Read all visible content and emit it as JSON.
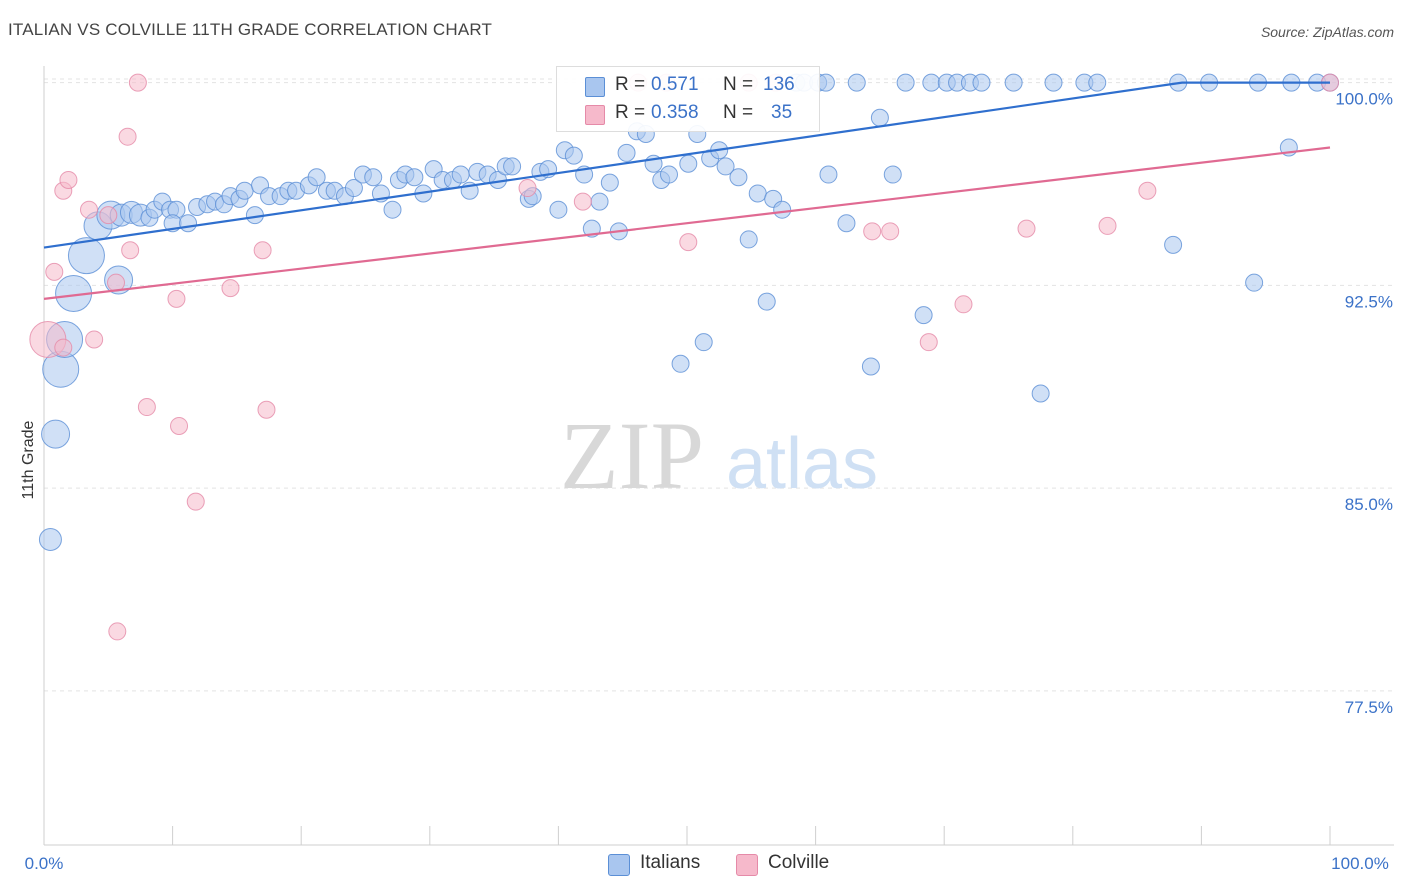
{
  "header": {
    "title": "ITALIAN VS COLVILLE 11TH GRADE CORRELATION CHART",
    "source": "Source: ZipAtlas.com"
  },
  "watermark": {
    "zip": "ZIP",
    "atlas": "atlas"
  },
  "stats_box": {
    "r_label": "R =",
    "n_label": "N =",
    "rows": [
      {
        "r": "0.571",
        "n": "136",
        "color": "#a9c6ef"
      },
      {
        "r": "0.358",
        "n": "35",
        "color": "#f6b9cb"
      }
    ]
  },
  "legend": [
    {
      "label": "Italians",
      "color": "#a9c6ef"
    },
    {
      "label": "Colville",
      "color": "#f6b9cb"
    }
  ],
  "chart_data": {
    "type": "scatter",
    "title": "ITALIAN VS COLVILLE 11TH GRADE CORRELATION CHART",
    "xlabel": "",
    "ylabel": "11th Grade",
    "xlim": [
      0,
      100
    ],
    "ylim": [
      71.8,
      100.8
    ],
    "x_tick_labels": [
      "0.0%",
      "100.0%"
    ],
    "y_ticks": [
      77.5,
      85.0,
      92.5,
      100.0
    ],
    "y_tick_labels": [
      "77.5%",
      "85.0%",
      "92.5%",
      "100.0%"
    ],
    "grid": "horizontal dashed",
    "legend_position": "bottom-center",
    "colors": {
      "italians_fill": "#a9c6ef",
      "italians_stroke": "#5b8fd6",
      "italians_line": "#2f6fce",
      "colville_fill": "#f6b9cb",
      "colville_stroke": "#e58aa8",
      "colville_line": "#e06a92",
      "tick_label": "#3b72c8"
    },
    "series": [
      {
        "name": "Italians",
        "trend": {
          "x": [
            0,
            88.5,
            100
          ],
          "y": [
            93.9,
            100.0,
            100.0
          ]
        },
        "points": [
          [
            0.5,
            83.1,
            2
          ],
          [
            0.9,
            87.0,
            3
          ],
          [
            1.3,
            89.4,
            4
          ],
          [
            1.6,
            90.5,
            4
          ],
          [
            2.3,
            92.2,
            4
          ],
          [
            3.3,
            93.6,
            4
          ],
          [
            4.2,
            94.7,
            3
          ],
          [
            5.8,
            92.7,
            3
          ],
          [
            5.2,
            95.1,
            3
          ],
          [
            6.0,
            95.1,
            2
          ],
          [
            6.8,
            95.2,
            2
          ],
          [
            7.5,
            95.1,
            2
          ],
          [
            8.2,
            95.0,
            1
          ],
          [
            8.6,
            95.3,
            1
          ],
          [
            9.2,
            95.6,
            1
          ],
          [
            9.8,
            95.3,
            1
          ],
          [
            10.3,
            95.3,
            1
          ],
          [
            10.0,
            94.8,
            1
          ],
          [
            11.2,
            94.8,
            1
          ],
          [
            11.9,
            95.4,
            1
          ],
          [
            12.7,
            95.5,
            1
          ],
          [
            13.3,
            95.6,
            1
          ],
          [
            14.0,
            95.5,
            1
          ],
          [
            14.5,
            95.8,
            1
          ],
          [
            15.2,
            95.7,
            1
          ],
          [
            15.6,
            96.0,
            1
          ],
          [
            16.4,
            95.1,
            1
          ],
          [
            16.8,
            96.2,
            1
          ],
          [
            17.5,
            95.8,
            1
          ],
          [
            18.4,
            95.8,
            1
          ],
          [
            19.0,
            96.0,
            1
          ],
          [
            19.6,
            96.0,
            1
          ],
          [
            20.6,
            96.2,
            1
          ],
          [
            21.2,
            96.5,
            1
          ],
          [
            22.0,
            96.0,
            1
          ],
          [
            22.6,
            96.0,
            1
          ],
          [
            23.4,
            95.8,
            1
          ],
          [
            24.1,
            96.1,
            1
          ],
          [
            24.8,
            96.6,
            1
          ],
          [
            25.6,
            96.5,
            1
          ],
          [
            26.2,
            95.9,
            1
          ],
          [
            27.1,
            95.3,
            1
          ],
          [
            27.6,
            96.4,
            1
          ],
          [
            28.1,
            96.6,
            1
          ],
          [
            28.8,
            96.5,
            1
          ],
          [
            29.5,
            95.9,
            1
          ],
          [
            30.3,
            96.8,
            1
          ],
          [
            31.0,
            96.4,
            1
          ],
          [
            31.8,
            96.4,
            1
          ],
          [
            32.4,
            96.6,
            1
          ],
          [
            33.1,
            96.0,
            1
          ],
          [
            33.7,
            96.7,
            1
          ],
          [
            34.5,
            96.6,
            1
          ],
          [
            35.3,
            96.4,
            1
          ],
          [
            35.9,
            96.9,
            1
          ],
          [
            36.4,
            96.9,
            1
          ],
          [
            37.7,
            95.7,
            1
          ],
          [
            38.0,
            95.8,
            1
          ],
          [
            38.6,
            96.7,
            1
          ],
          [
            39.2,
            96.8,
            1
          ],
          [
            40.0,
            95.3,
            1
          ],
          [
            40.5,
            97.5,
            1
          ],
          [
            41.2,
            97.3,
            1
          ],
          [
            42.0,
            96.6,
            1
          ],
          [
            42.6,
            94.6,
            1
          ],
          [
            43.2,
            95.6,
            1
          ],
          [
            44.0,
            96.3,
            1
          ],
          [
            44.7,
            94.5,
            1
          ],
          [
            45.3,
            97.4,
            1
          ],
          [
            46.1,
            98.2,
            1
          ],
          [
            46.8,
            98.1,
            1
          ],
          [
            47.4,
            97.0,
            1
          ],
          [
            48.0,
            96.4,
            1
          ],
          [
            48.6,
            96.6,
            1
          ],
          [
            49.5,
            89.6,
            1
          ],
          [
            50.1,
            97.0,
            1
          ],
          [
            50.8,
            98.1,
            1
          ],
          [
            51.3,
            90.4,
            1
          ],
          [
            51.8,
            97.2,
            1
          ],
          [
            52.5,
            97.5,
            1
          ],
          [
            53.0,
            96.9,
            1
          ],
          [
            54.0,
            96.5,
            1
          ],
          [
            54.8,
            94.2,
            1
          ],
          [
            55.5,
            95.9,
            1
          ],
          [
            56.2,
            91.9,
            1
          ],
          [
            56.7,
            95.7,
            1
          ],
          [
            57.4,
            95.3,
            1
          ],
          [
            58.5,
            100.0,
            1
          ],
          [
            59.1,
            100.0,
            1
          ],
          [
            60.2,
            100.0,
            1
          ],
          [
            60.8,
            100.0,
            1
          ],
          [
            61.0,
            96.6,
            1
          ],
          [
            62.4,
            94.8,
            1
          ],
          [
            63.2,
            100.0,
            1
          ],
          [
            64.3,
            89.5,
            1
          ],
          [
            65.0,
            98.7,
            1
          ],
          [
            66.0,
            96.6,
            1
          ],
          [
            67.0,
            100.0,
            1
          ],
          [
            68.4,
            91.4,
            1
          ],
          [
            69.0,
            100.0,
            1
          ],
          [
            70.2,
            100.0,
            1
          ],
          [
            71.0,
            100.0,
            1
          ],
          [
            72.0,
            100.0,
            1
          ],
          [
            72.9,
            100.0,
            1
          ],
          [
            75.4,
            100.0,
            1
          ],
          [
            77.5,
            88.5,
            1
          ],
          [
            78.5,
            100.0,
            1
          ],
          [
            80.9,
            100.0,
            1
          ],
          [
            81.9,
            100.0,
            1
          ],
          [
            87.8,
            94.0,
            1
          ],
          [
            88.2,
            100.0,
            1
          ],
          [
            90.6,
            100.0,
            1
          ],
          [
            94.1,
            92.6,
            1
          ],
          [
            94.4,
            100.0,
            1
          ],
          [
            96.8,
            97.6,
            1
          ],
          [
            97.0,
            100.0,
            1
          ],
          [
            99.0,
            100.0,
            1
          ],
          [
            100.0,
            100.0,
            1
          ]
        ]
      },
      {
        "name": "Colville",
        "trend": {
          "x": [
            0,
            100
          ],
          "y": [
            92.0,
            97.6
          ]
        },
        "points": [
          [
            0.3,
            90.5,
            4
          ],
          [
            0.8,
            93.0,
            1
          ],
          [
            1.5,
            96.0,
            1
          ],
          [
            1.9,
            96.4,
            1
          ],
          [
            1.5,
            90.2,
            1
          ],
          [
            3.5,
            95.3,
            1
          ],
          [
            3.9,
            90.5,
            1
          ],
          [
            5.0,
            95.1,
            1
          ],
          [
            5.6,
            92.6,
            1
          ],
          [
            5.7,
            79.7,
            1
          ],
          [
            6.5,
            98.0,
            1
          ],
          [
            6.7,
            93.8,
            1
          ],
          [
            7.3,
            100.0,
            1
          ],
          [
            8.0,
            88.0,
            1
          ],
          [
            10.3,
            92.0,
            1
          ],
          [
            10.5,
            87.3,
            1
          ],
          [
            11.8,
            84.5,
            1
          ],
          [
            14.5,
            92.4,
            1
          ],
          [
            17.0,
            93.8,
            1
          ],
          [
            17.3,
            87.9,
            1
          ],
          [
            37.6,
            96.1,
            1
          ],
          [
            41.9,
            95.6,
            1
          ],
          [
            46.2,
            100.0,
            1
          ],
          [
            48.4,
            100.0,
            1
          ],
          [
            50.1,
            94.1,
            1
          ],
          [
            54.8,
            100.0,
            1
          ],
          [
            56.9,
            100.0,
            1
          ],
          [
            64.4,
            94.5,
            1
          ],
          [
            65.8,
            94.5,
            1
          ],
          [
            68.8,
            90.4,
            1
          ],
          [
            71.5,
            91.8,
            1
          ],
          [
            76.4,
            94.6,
            1
          ],
          [
            82.7,
            94.7,
            1
          ],
          [
            85.8,
            96.0,
            1
          ],
          [
            100.0,
            100.0,
            1
          ]
        ]
      }
    ]
  }
}
